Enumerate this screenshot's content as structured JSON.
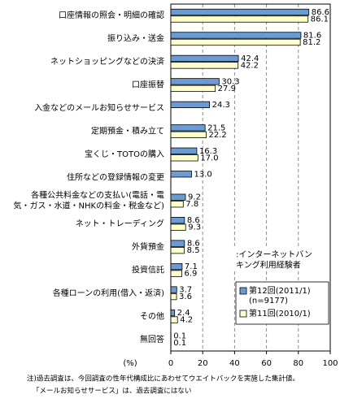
{
  "chart_data": {
    "type": "hbar",
    "categories": [
      "口座情報の照会・明細の確認",
      "振り込み・送金",
      "ネットショッピングなどの決済",
      "口座振替",
      "入金などのメールお知らせサービス",
      "定期預金・積み立て",
      "宝くじ・TOTOの購入",
      "住所などの登録情報の変更",
      "各種公共料金などの支払い(電話・電\n気・ガス・水道・NHKの料金・税金など)",
      "ネット・トレーディング",
      "外貨預金",
      "投資信託",
      "各種ローンの利用(借入・返済)",
      "その他",
      "無回答"
    ],
    "series": [
      {
        "name": "第12回(2011/1)\n(n=9177)",
        "color": "#6b9bd2",
        "values": [
          86.6,
          81.6,
          42.4,
          30.3,
          24.3,
          21.5,
          16.3,
          13.0,
          9.2,
          8.6,
          8.6,
          7.1,
          3.7,
          2.4,
          0.1
        ],
        "value_labels": [
          "86.6",
          "81.6",
          "42.4",
          "30.3",
          "24.3",
          "21.5",
          "16.3",
          "13.0",
          "9.2",
          "8.6",
          "8.6",
          "7.1",
          "3.7",
          "2.4",
          "0.1"
        ]
      },
      {
        "name": "第11回(2010/1)",
        "color": "#ffffcc",
        "values": [
          86.1,
          81.2,
          42.2,
          27.9,
          null,
          22.2,
          17.0,
          null,
          7.8,
          9.3,
          8.5,
          6.9,
          3.6,
          4.2,
          0.1
        ],
        "value_labels": [
          "86.1",
          "81.2",
          "42.2",
          "27.9",
          null,
          "22.2",
          "17.0",
          null,
          "7.8",
          "9.3",
          "8.5",
          "6.9",
          "3.6",
          "4.2",
          "0.1"
        ]
      }
    ],
    "x_label": "(%)",
    "xlim": [
      0,
      100
    ],
    "xticks": [
      0,
      20,
      40,
      60,
      80,
      100
    ],
    "grid": true,
    "annotation": ":インターネットバン\nキング利用経験者",
    "notes": [
      "注)過去調査は、今回調査の性年代構成比にあわせてウエイトバックを実施した集計値。",
      "「メールお知らせサービス」は、過去調査にはない"
    ]
  }
}
